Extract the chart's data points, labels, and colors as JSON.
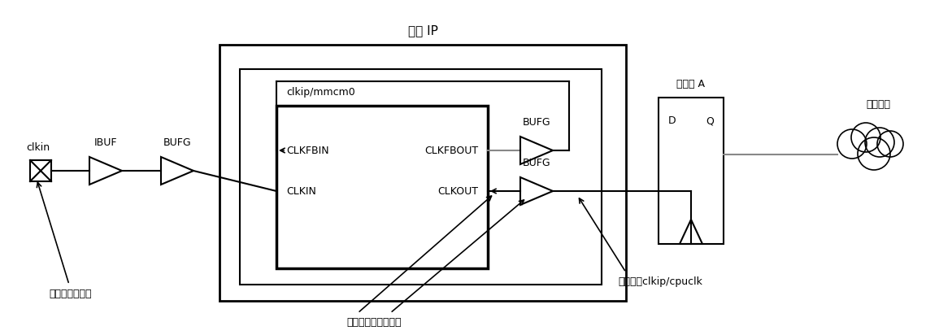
{
  "bg_color": "#ffffff",
  "title": "时钟 IP",
  "clkin_label": "clkin",
  "ibuf_label": "IBUF",
  "bufg1_label": "BUFG",
  "mmcm_outer_label": "clkip/mmcm0",
  "clkfbin_label": "CLKFBIN",
  "clkin_port_label": "CLKIN",
  "clkfbout_label": "CLKFBOUT",
  "clkout_label": "CLKOUT",
  "bufg_fb_label": "BUFG",
  "bufg2_label": "BUFG",
  "reg_label": "寄存器 A",
  "reg_d": "D",
  "reg_q": "Q",
  "data_path_label": "数据路径",
  "ann1": "主时钟定义位置",
  "ann2": "自动生成时钟定义点",
  "ann3": "层级名：clkip/cpuclk"
}
